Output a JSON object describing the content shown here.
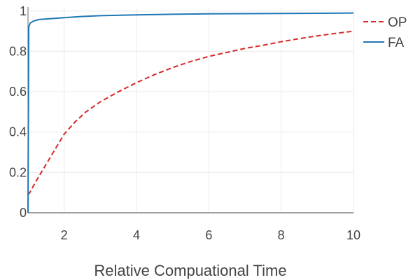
{
  "chart_data": {
    "type": "line",
    "title": "",
    "xlabel": "Relative Compuational Time",
    "ylabel": "",
    "xlim": [
      1,
      10
    ],
    "ylim": [
      0,
      1.02
    ],
    "x_ticks": [
      2,
      4,
      6,
      8,
      10
    ],
    "x_tick_labels": [
      "2",
      "4",
      "6",
      "8",
      "10"
    ],
    "y_ticks": [
      0,
      0.2,
      0.4,
      0.6,
      0.8,
      1
    ],
    "y_tick_labels": [
      "0",
      "0.2",
      "0.4",
      "0.6",
      "0.8",
      "1"
    ],
    "grid": true,
    "legend_position": "right",
    "series": [
      {
        "name": "OP",
        "color": "#d62728",
        "dash": "dashed",
        "x": [
          1,
          1.05,
          1.2,
          1.5,
          1.8,
          2,
          2.3,
          2.6,
          3,
          3.5,
          4,
          4.5,
          5,
          5.5,
          6,
          6.5,
          7,
          7.5,
          8,
          8.5,
          9,
          9.5,
          10
        ],
        "y": [
          0.09,
          0.1,
          0.15,
          0.24,
          0.33,
          0.39,
          0.45,
          0.5,
          0.55,
          0.6,
          0.645,
          0.685,
          0.72,
          0.75,
          0.775,
          0.795,
          0.815,
          0.83,
          0.848,
          0.863,
          0.877,
          0.889,
          0.9
        ]
      },
      {
        "name": "FA",
        "color": "#1f77b4",
        "dash": "solid",
        "x": [
          1,
          1.02,
          1.06,
          1.15,
          1.3,
          1.6,
          2,
          2.5,
          3,
          4,
          5,
          6,
          7,
          8,
          9,
          10
        ],
        "y": [
          0.0,
          0.92,
          0.94,
          0.95,
          0.958,
          0.962,
          0.967,
          0.973,
          0.977,
          0.981,
          0.984,
          0.986,
          0.987,
          0.988,
          0.989,
          0.99
        ]
      }
    ]
  }
}
